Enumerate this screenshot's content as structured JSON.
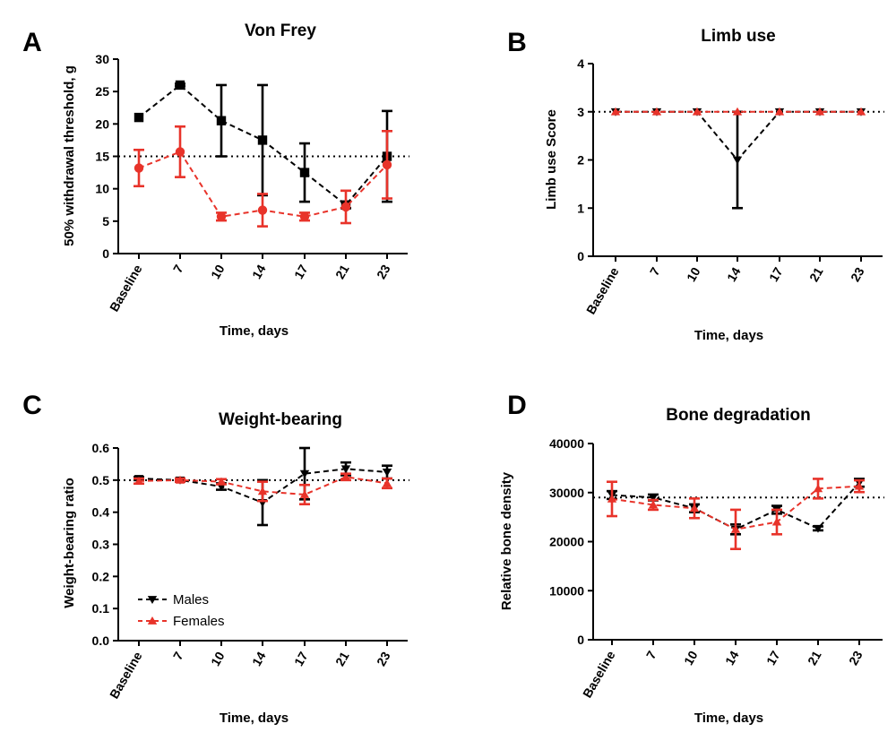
{
  "chart_data": [
    {
      "letter": "A",
      "type": "line",
      "title": "Von Frey",
      "xlabel": "Time, days",
      "ylabel": "50% withdrawal threshold, g",
      "categories": [
        "Baseline",
        "7",
        "10",
        "14",
        "17",
        "21",
        "23"
      ],
      "ylim": [
        0,
        30
      ],
      "yticks": [
        0,
        5,
        10,
        15,
        20,
        25,
        30
      ],
      "reference_line": 15,
      "series": [
        {
          "name": "Males",
          "color": "#000000",
          "marker": "square",
          "values": [
            21,
            26,
            20.5,
            17.5,
            12.5,
            7.5,
            15
          ],
          "errors": [
            0,
            0.2,
            5.5,
            8.5,
            4.5,
            0.5,
            7
          ]
        },
        {
          "name": "Females",
          "color": "#e8332a",
          "marker": "circle",
          "values": [
            13.2,
            15.7,
            5.7,
            6.7,
            5.7,
            7.2,
            13.7
          ],
          "errors": [
            2.8,
            3.9,
            0.6,
            2.5,
            0.6,
            2.5,
            5.2
          ]
        }
      ]
    },
    {
      "letter": "B",
      "type": "line",
      "title": "Limb use",
      "xlabel": "Time, days",
      "ylabel": "Limb use Score",
      "categories": [
        "Baseline",
        "7",
        "10",
        "14",
        "17",
        "21",
        "23"
      ],
      "ylim": [
        0,
        4
      ],
      "yticks": [
        0,
        1,
        2,
        3,
        4
      ],
      "reference_line": 3,
      "series": [
        {
          "name": "Males",
          "color": "#000000",
          "marker": "triangle-down",
          "values": [
            3,
            3,
            3,
            2,
            3,
            3,
            3
          ],
          "errors": [
            0,
            0,
            0,
            1,
            0,
            0,
            0
          ]
        },
        {
          "name": "Females",
          "color": "#e8332a",
          "marker": "triangle-up",
          "values": [
            3,
            3,
            3,
            3,
            3,
            3,
            3
          ],
          "errors": [
            0,
            0,
            0,
            0,
            0,
            0,
            0
          ]
        }
      ]
    },
    {
      "letter": "C",
      "type": "line",
      "title": "Weight-bearing",
      "xlabel": "Time, days",
      "ylabel": "Weight-bearing ratio",
      "categories": [
        "Baseline",
        "7",
        "10",
        "14",
        "17",
        "21",
        "23"
      ],
      "ylim": [
        0,
        0.6
      ],
      "yticks": [
        0.0,
        0.1,
        0.2,
        0.3,
        0.4,
        0.5,
        0.6
      ],
      "ytick_labels": [
        "0.0",
        "0.1",
        "0.2",
        "0.3",
        "0.4",
        "0.5",
        "0.6"
      ],
      "reference_line": 0.5,
      "legend": {
        "position": "bottom-left",
        "entries": [
          "Males",
          "Females"
        ]
      },
      "series": [
        {
          "name": "Males",
          "color": "#000000",
          "marker": "triangle-down",
          "values": [
            0.505,
            0.5,
            0.48,
            0.43,
            0.52,
            0.535,
            0.525
          ],
          "errors": [
            0.005,
            0.005,
            0.01,
            0.07,
            0.08,
            0.02,
            0.02
          ]
        },
        {
          "name": "Females",
          "color": "#e8332a",
          "marker": "triangle-up",
          "values": [
            0.497,
            0.5,
            0.495,
            0.465,
            0.455,
            0.51,
            0.49
          ],
          "errors": [
            0.008,
            0.005,
            0.008,
            0.03,
            0.03,
            0.01,
            0.015
          ]
        }
      ]
    },
    {
      "letter": "D",
      "type": "line",
      "title": "Bone degradation",
      "xlabel": "Time, days",
      "ylabel": "Relative bone density",
      "categories": [
        "Baseline",
        "7",
        "10",
        "14",
        "17",
        "21",
        "23"
      ],
      "ylim": [
        0,
        40000
      ],
      "yticks": [
        0,
        10000,
        20000,
        30000,
        40000
      ],
      "reference_line": 29000,
      "series": [
        {
          "name": "Males",
          "color": "#000000",
          "marker": "triangle-down",
          "values": [
            29500,
            29000,
            26800,
            22500,
            26500,
            22700,
            32000
          ],
          "errors": [
            800,
            600,
            800,
            1000,
            800,
            400,
            800
          ]
        },
        {
          "name": "Females",
          "color": "#e8332a",
          "marker": "triangle-up",
          "values": [
            28700,
            27500,
            26800,
            22500,
            24000,
            30800,
            31300
          ],
          "errors": [
            3500,
            1000,
            2000,
            4000,
            2500,
            2000,
            1200
          ]
        }
      ]
    }
  ]
}
